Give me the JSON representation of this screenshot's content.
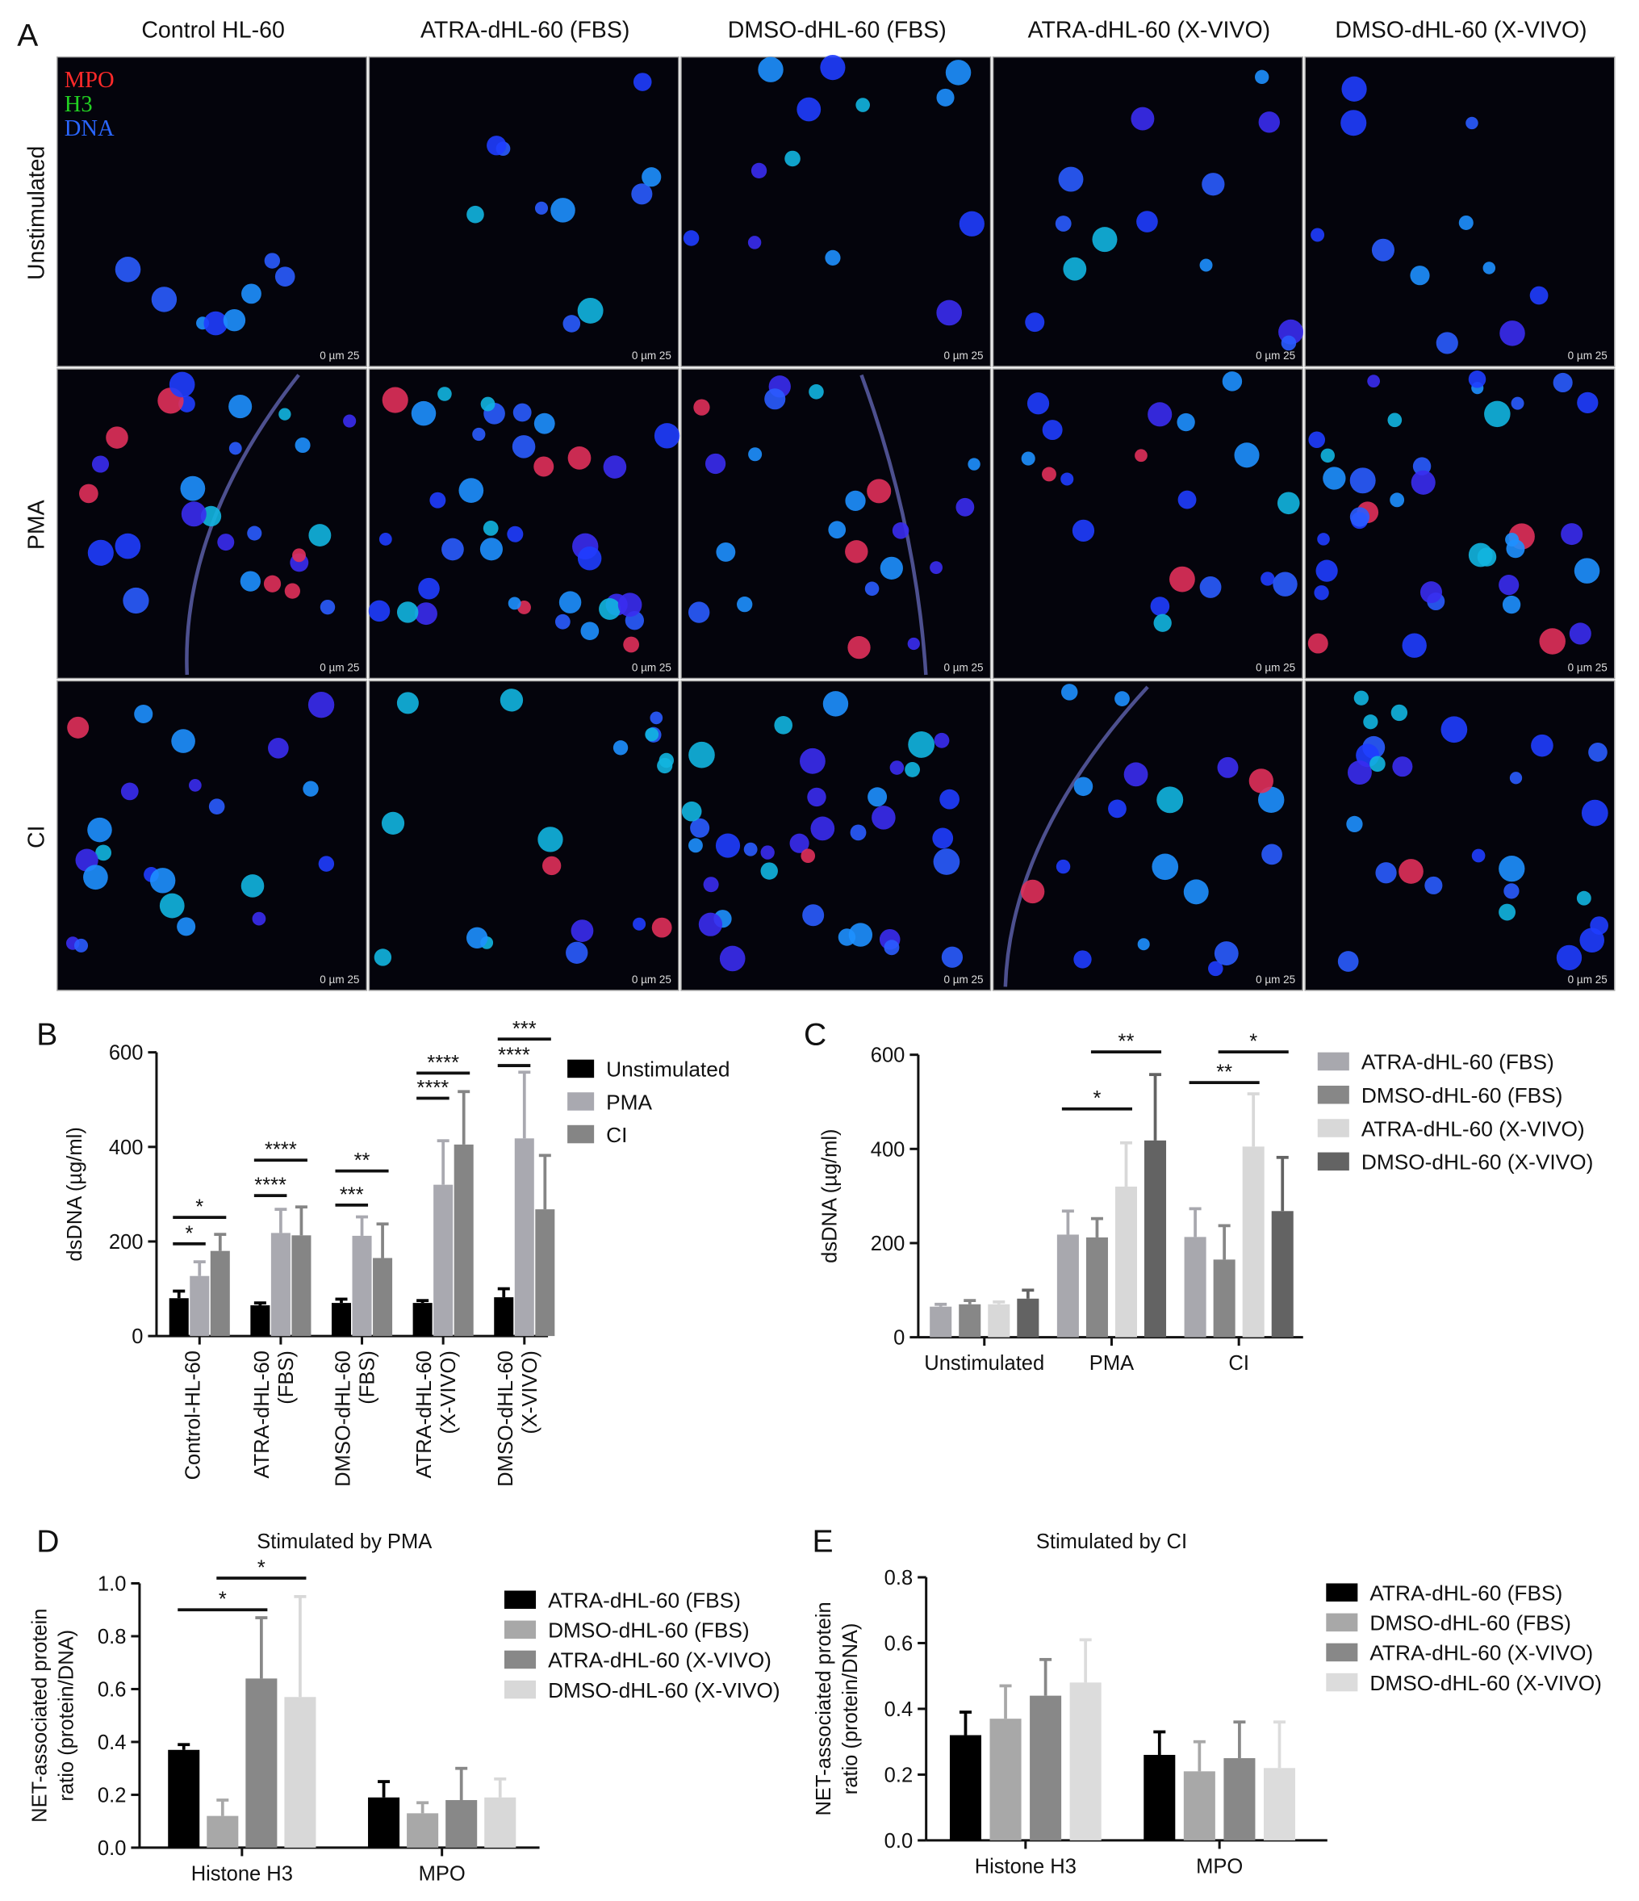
{
  "image_grid": {
    "panel": "A",
    "columns": [
      "Control HL-60",
      "ATRA-dHL-60 (FBS)",
      "DMSO-dHL-60 (FBS)",
      "ATRA-dHL-60 (X-VIVO)",
      "DMSO-dHL-60 (X-VIVO)"
    ],
    "rows": [
      "Unstimulated",
      "PMA",
      "CI"
    ],
    "legend": [
      {
        "label": "MPO",
        "color": "#ff2a2a"
      },
      {
        "label": "H3",
        "color": "#22d022"
      },
      {
        "label": "DNA",
        "color": "#2a66ff"
      }
    ],
    "scale_bar": "0   µm   25"
  },
  "chart_data": [
    {
      "type": "bar",
      "panel": "B",
      "y_label": "dsDNA (µg/ml)",
      "categories": [
        "Control-HL-60",
        "ATRA-dHL-60 (FBS)",
        "DMSO-dHL-60 (FBS)",
        "ATRA-dHL-60 (X-VIVO)",
        "DMSO-dHL-60 (X-VIVO)"
      ],
      "series": [
        {
          "name": "Unstimulated",
          "color": "#000000",
          "values": [
            80,
            65,
            70,
            70,
            82
          ],
          "errors": [
            15,
            5,
            8,
            5,
            18
          ]
        },
        {
          "name": "PMA",
          "color": "#a9a9b0",
          "values": [
            127,
            218,
            212,
            320,
            418
          ],
          "errors": [
            30,
            50,
            40,
            93,
            140
          ]
        },
        {
          "name": "CI",
          "color": "#858585",
          "values": [
            180,
            213,
            165,
            405,
            268
          ],
          "errors": [
            35,
            60,
            72,
            112,
            114
          ]
        }
      ],
      "ylim": [
        0,
        600
      ],
      "yticks": [
        0,
        200,
        400,
        600
      ],
      "significance": [
        {
          "label": "*",
          "category": "Control-HL-60",
          "between": [
            "Unstimulated",
            "PMA"
          ],
          "y": 195
        },
        {
          "label": "*",
          "category": "Control-HL-60",
          "between": [
            "Unstimulated",
            "CI"
          ],
          "y": 251
        },
        {
          "label": "****",
          "category": "ATRA-dHL-60 (FBS)",
          "between": [
            "Unstimulated",
            "PMA"
          ],
          "y": 297
        },
        {
          "label": "****",
          "category": "ATRA-dHL-60 (FBS)",
          "between": [
            "Unstimulated",
            "CI"
          ],
          "y": 372
        },
        {
          "label": "***",
          "category": "DMSO-dHL-60 (FBS)",
          "between": [
            "Unstimulated",
            "PMA"
          ],
          "y": 277
        },
        {
          "label": "**",
          "category": "DMSO-dHL-60 (FBS)",
          "between": [
            "Unstimulated",
            "CI"
          ],
          "y": 349
        },
        {
          "label": "****",
          "category": "ATRA-dHL-60 (X-VIVO)",
          "between": [
            "Unstimulated",
            "PMA"
          ],
          "y": 503
        },
        {
          "label": "****",
          "category": "ATRA-dHL-60 (X-VIVO)",
          "between": [
            "Unstimulated",
            "CI"
          ],
          "y": 556
        },
        {
          "label": "****",
          "category": "DMSO-dHL-60 (X-VIVO)",
          "between": [
            "Unstimulated",
            "PMA"
          ],
          "y": 572
        },
        {
          "label": "***",
          "category": "DMSO-dHL-60 (X-VIVO)",
          "between": [
            "Unstimulated",
            "CI"
          ],
          "y": 628
        }
      ]
    },
    {
      "type": "bar",
      "panel": "C",
      "y_label": "dsDNA (µg/ml)",
      "categories": [
        "Unstimulated",
        "PMA",
        "CI"
      ],
      "series": [
        {
          "name": "ATRA-dHL-60 (FBS)",
          "color": "#a8a8ae",
          "values": [
            65,
            218,
            213
          ],
          "errors": [
            5,
            50,
            60
          ]
        },
        {
          "name": "DMSO-dHL-60 (FBS)",
          "color": "#878787",
          "values": [
            70,
            212,
            165
          ],
          "errors": [
            8,
            40,
            72
          ]
        },
        {
          "name": "ATRA-dHL-60 (X-VIVO)",
          "color": "#d8d8d8",
          "values": [
            70,
            320,
            405
          ],
          "errors": [
            5,
            93,
            112
          ]
        },
        {
          "name": "DMSO-dHL-60 (X-VIVO)",
          "color": "#636363",
          "values": [
            82,
            418,
            268
          ],
          "errors": [
            18,
            140,
            114
          ]
        }
      ],
      "ylim": [
        0,
        600
      ],
      "yticks": [
        0,
        200,
        400,
        600
      ],
      "significance": [
        {
          "label": "*",
          "category": "PMA",
          "between": [
            "ATRA-dHL-60 (FBS)",
            "ATRA-dHL-60 (X-VIVO)"
          ],
          "y": 485
        },
        {
          "label": "**",
          "category": "PMA",
          "between": [
            "DMSO-dHL-60 (FBS)",
            "DMSO-dHL-60 (X-VIVO)"
          ],
          "y": 606
        },
        {
          "label": "**",
          "category": "CI",
          "between": [
            "ATRA-dHL-60 (FBS)",
            "ATRA-dHL-60 (X-VIVO)"
          ],
          "y": 541
        },
        {
          "label": "*",
          "category": "CI",
          "between": [
            "DMSO-dHL-60 (FBS)",
            "DMSO-dHL-60 (X-VIVO)"
          ],
          "y": 606
        }
      ]
    },
    {
      "type": "bar",
      "panel": "D",
      "title": "Stimulated by PMA",
      "y_label": [
        "NET-associated protein",
        "ratio (protein/DNA)"
      ],
      "categories": [
        "Histone H3",
        "MPO"
      ],
      "series": [
        {
          "name": "ATRA-dHL-60 (FBS)",
          "color": "#000000",
          "values": [
            0.37,
            0.19
          ],
          "errors": [
            0.02,
            0.06
          ]
        },
        {
          "name": "DMSO-dHL-60 (FBS)",
          "color": "#a8a8a8",
          "values": [
            0.12,
            0.13
          ],
          "errors": [
            0.06,
            0.04
          ]
        },
        {
          "name": "ATRA-dHL-60 (X-VIVO)",
          "color": "#888888",
          "values": [
            0.64,
            0.18
          ],
          "errors": [
            0.23,
            0.12
          ]
        },
        {
          "name": "DMSO-dHL-60 (X-VIVO)",
          "color": "#d8d8d8",
          "values": [
            0.57,
            0.19
          ],
          "errors": [
            0.38,
            0.07
          ]
        }
      ],
      "ylim": [
        0,
        1
      ],
      "yticks": [
        {
          "value": 0,
          "label": "0.0"
        },
        0.2,
        0.4,
        0.6,
        0.8,
        {
          "value": 1,
          "label": "1.0"
        }
      ],
      "significance": [
        {
          "label": "*",
          "category": "Histone H3",
          "between": [
            "ATRA-dHL-60 (FBS)",
            "ATRA-dHL-60 (X-VIVO)"
          ],
          "y": 0.9
        },
        {
          "label": "*",
          "category": "Histone H3",
          "between": [
            "DMSO-dHL-60 (FBS)",
            "DMSO-dHL-60 (X-VIVO)"
          ],
          "y": 1.02
        }
      ]
    },
    {
      "type": "bar",
      "panel": "E",
      "title": "Stimulated by CI",
      "y_label": [
        "NET-associated protein",
        "ratio (protein/DNA)"
      ],
      "categories": [
        "Histone H3",
        "MPO"
      ],
      "series": [
        {
          "name": "ATRA-dHL-60 (FBS)",
          "color": "#000000",
          "values": [
            0.32,
            0.26
          ],
          "errors": [
            0.07,
            0.07
          ]
        },
        {
          "name": "DMSO-dHL-60 (FBS)",
          "color": "#a8a8a8",
          "values": [
            0.37,
            0.21
          ],
          "errors": [
            0.1,
            0.09
          ]
        },
        {
          "name": "ATRA-dHL-60 (X-VIVO)",
          "color": "#888888",
          "values": [
            0.44,
            0.25
          ],
          "errors": [
            0.11,
            0.11
          ]
        },
        {
          "name": "DMSO-dHL-60 (X-VIVO)",
          "color": "#dcdcdc",
          "values": [
            0.48,
            0.22
          ],
          "errors": [
            0.13,
            0.14
          ]
        }
      ],
      "ylim": [
        0,
        0.8
      ],
      "yticks": [
        {
          "value": 0,
          "label": "0.0"
        },
        0.2,
        0.4,
        0.6,
        0.8
      ]
    }
  ]
}
